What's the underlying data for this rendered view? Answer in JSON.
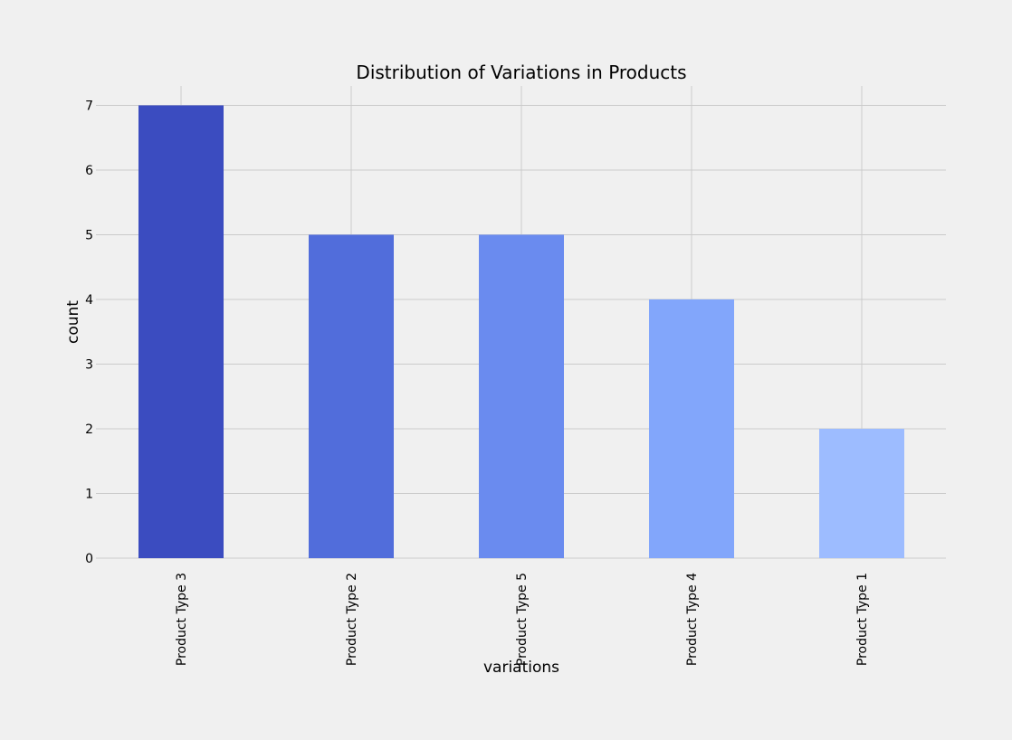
{
  "chart_data": {
    "type": "bar",
    "title": "Distribution of Variations in Products",
    "xlabel": "variations",
    "ylabel": "count",
    "categories": [
      "Product Type 3",
      "Product Type 2",
      "Product Type 5",
      "Product Type 4",
      "Product Type 1"
    ],
    "values": [
      7,
      5,
      5,
      4,
      2
    ],
    "bar_colors": [
      "#3b4cc0",
      "#516ddb",
      "#6a8bef",
      "#82a6fb",
      "#9dbcff"
    ],
    "ylim": [
      0,
      7.3
    ],
    "yticks": [
      0,
      1,
      2,
      3,
      4,
      5,
      6,
      7
    ],
    "grid": true,
    "legend": "none",
    "background_color": "#f0f0f0",
    "grid_color": "#cbcbcb"
  }
}
